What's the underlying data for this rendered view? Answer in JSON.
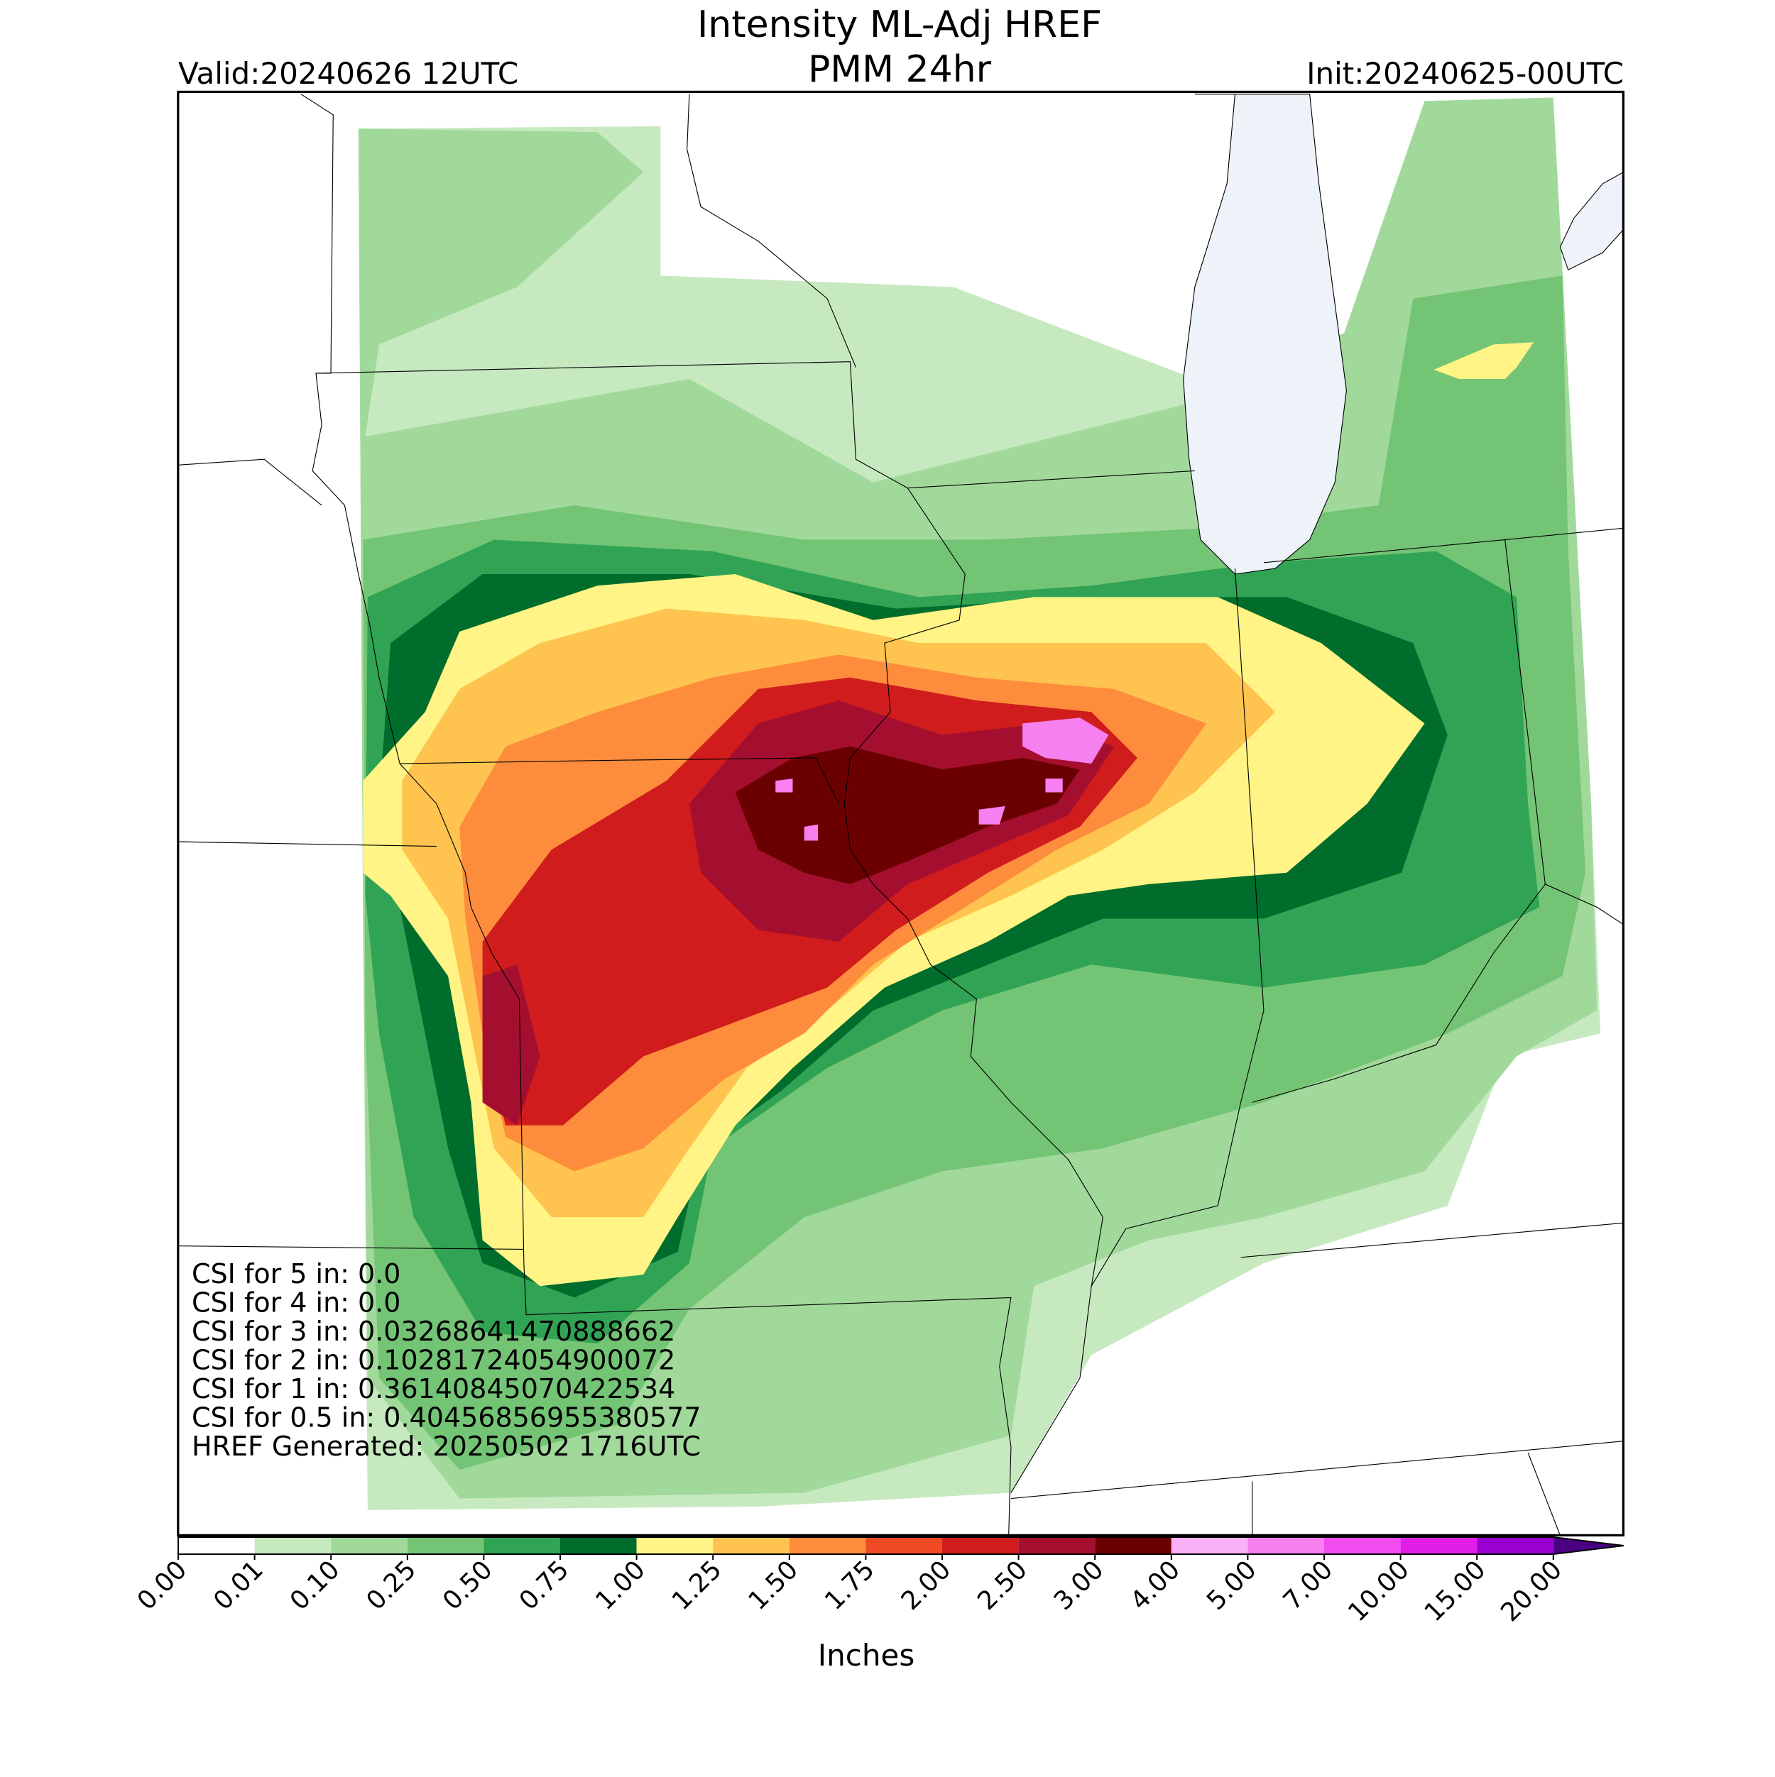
{
  "header": {
    "title": "Intensity ML-Adj HREF",
    "subtitle": "PMM 24hr",
    "valid": "Valid:20240626 12UTC",
    "init": "Init:20240625-00UTC"
  },
  "stats": [
    "CSI for 5 in: 0.0",
    "CSI for 4 in: 0.0",
    "CSI for 3 in: 0.03268641470888662",
    "CSI for 2 in: 0.10281724054900072",
    "CSI for 1 in: 0.36140845070422534",
    "CSI for 0.5 in: 0.40456856955380577",
    "HREF Generated: 20250502 1716UTC"
  ],
  "colorbar": {
    "label": "Inches",
    "ticks": [
      {
        "value": 0,
        "label": "0.00"
      },
      {
        "value": 0.01,
        "label": "0.01"
      },
      {
        "value": 0.1,
        "label": "0.10"
      },
      {
        "value": 0.25,
        "label": "0.25"
      },
      {
        "value": 0.5,
        "label": "0.50"
      },
      {
        "value": 0.75,
        "label": "0.75"
      },
      {
        "value": 1,
        "label": "1.00"
      },
      {
        "value": 1.25,
        "label": "1.25"
      },
      {
        "value": 1.5,
        "label": "1.50"
      },
      {
        "value": 1.75,
        "label": "1.75"
      },
      {
        "value": 2,
        "label": "2.00"
      },
      {
        "value": 2.5,
        "label": "2.50"
      },
      {
        "value": 3,
        "label": "3.00"
      },
      {
        "value": 4,
        "label": "4.00"
      },
      {
        "value": 5,
        "label": "5.00"
      },
      {
        "value": 7,
        "label": "7.00"
      },
      {
        "value": 10,
        "label": "10.00"
      },
      {
        "value": 15,
        "label": "15.00"
      },
      {
        "value": 20,
        "label": "20.00"
      }
    ],
    "colors": [
      "#ffffff",
      "#c7e9c0",
      "#a1d99b",
      "#74c476",
      "#31a354",
      "#006d2c",
      "#fff485",
      "#fec44f",
      "#fd8d3c",
      "#f04a25",
      "#d01c1c",
      "#a50f2f",
      "#6b0000",
      "#f9b0f4",
      "#f680f0",
      "#f24cf0",
      "#e01ee6",
      "#9a00d0",
      "#4b0082"
    ]
  }
}
